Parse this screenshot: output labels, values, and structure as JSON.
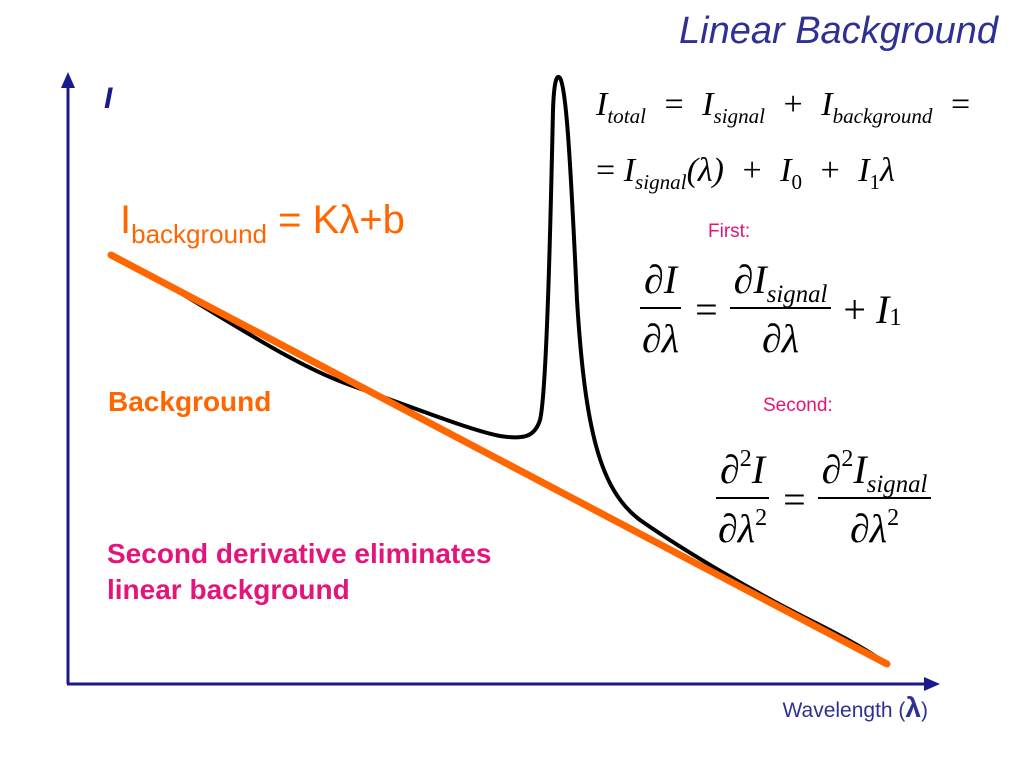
{
  "slide": {
    "title": "Linear Background",
    "y_axis_label": "I",
    "x_axis_label": "Wavelength (",
    "x_axis_symbol": "λ",
    "x_axis_close": ")",
    "background_equation": {
      "lhs": "I",
      "subscript": "background",
      "rhs": " = Kλ+b"
    },
    "background_label": "Background",
    "note_line1": "Second derivative eliminates",
    "note_line2": "linear background",
    "first_label": "First:",
    "second_label": "Second:"
  },
  "equations": {
    "total": {
      "I": "I",
      "sub_total": "total",
      "eq": "=",
      "sub_signal": "signal",
      "plus": "+",
      "sub_background": "background",
      "eq_trail": "="
    },
    "expanded": {
      "eq": "=",
      "I": "I",
      "sub_signal": "signal",
      "arg": "(λ)",
      "plus": "+",
      "sub_0": "0",
      "sub_1": "1",
      "lambda": "λ"
    },
    "first_derivative": {
      "num_left": "∂I",
      "den_left": "∂λ",
      "eq": "=",
      "num_right": "∂I",
      "num_right_sub": "signal",
      "den_right": "∂λ",
      "plus": "+",
      "I": "I",
      "sub_1": "1"
    },
    "second_derivative": {
      "partial": "∂",
      "sup_2": "2",
      "I": "I",
      "lambda": "λ",
      "eq": "=",
      "sub_signal": "signal"
    }
  },
  "colors": {
    "axis": "#1a1a8c",
    "background_line": "#ff6600",
    "signal_curve": "#000000",
    "title": "#2e3192",
    "accent_pink": "#e3147a"
  }
}
